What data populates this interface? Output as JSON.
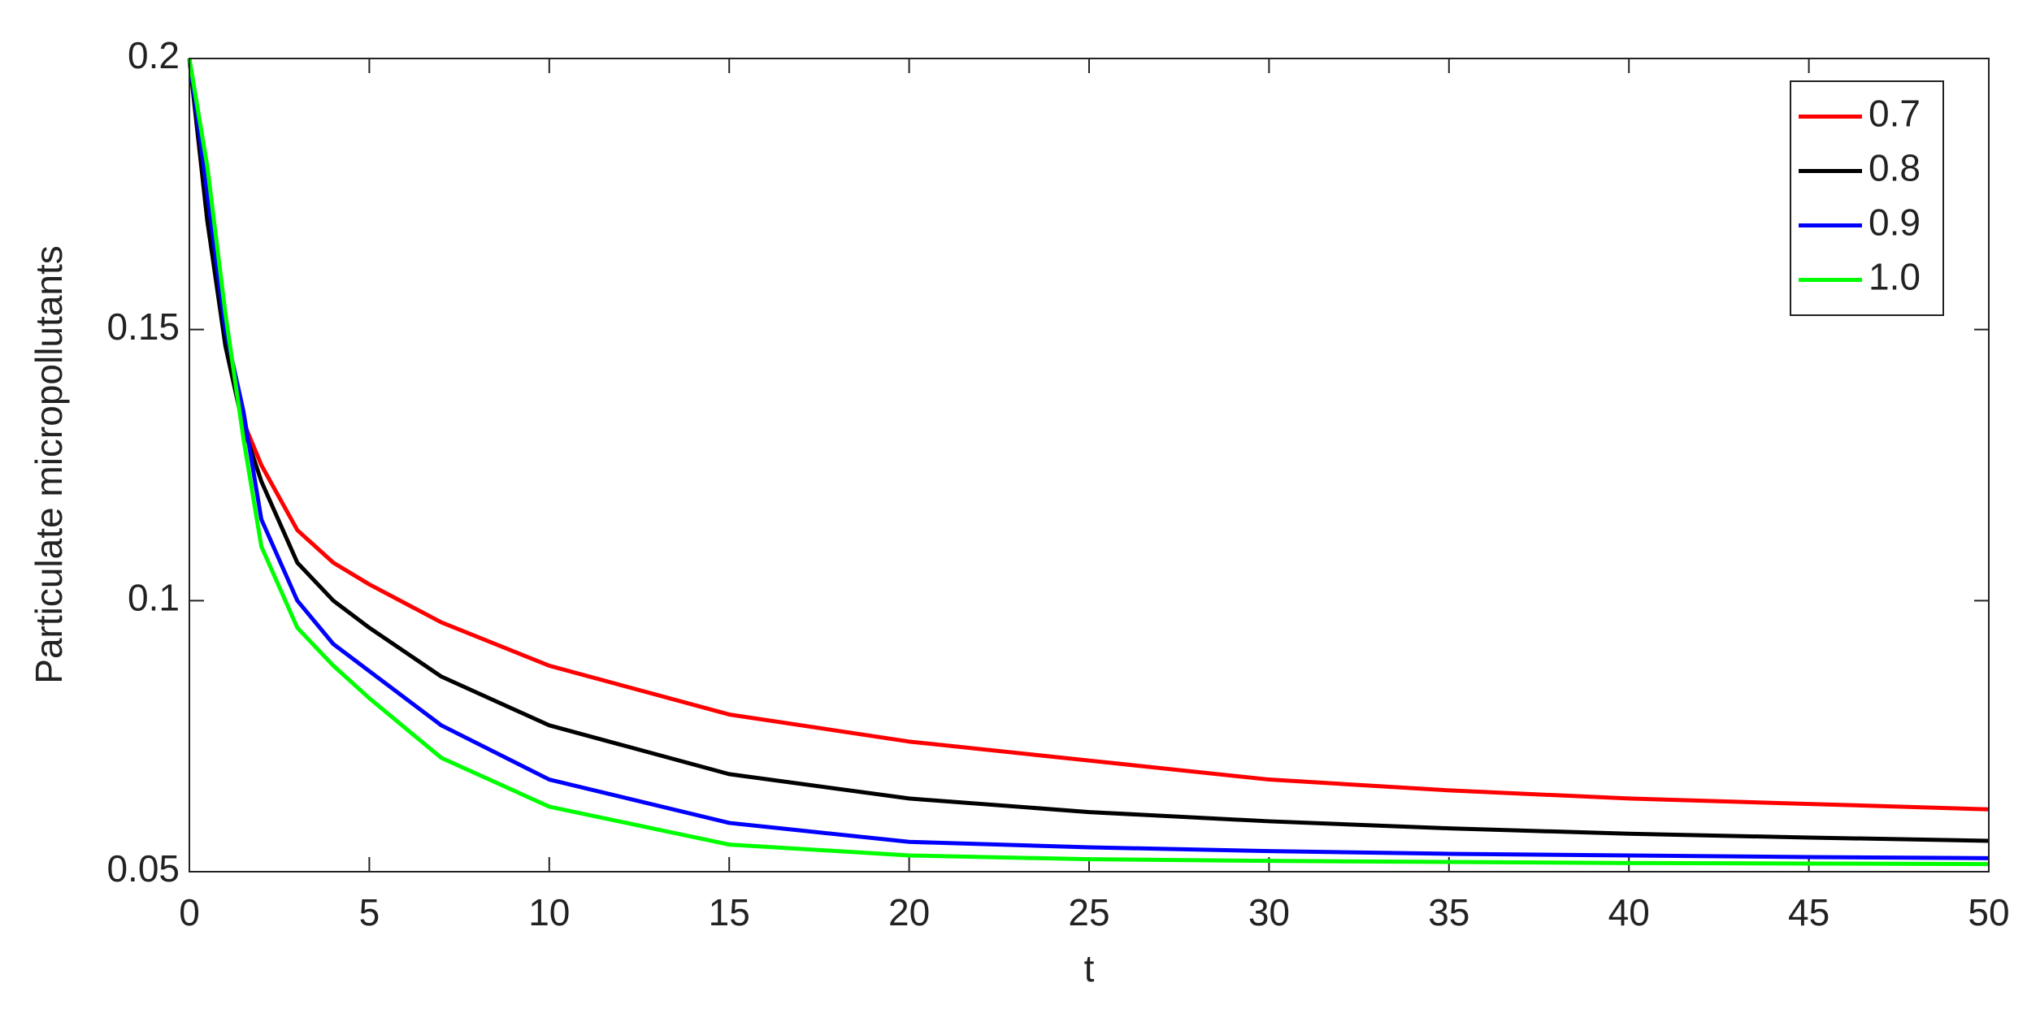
{
  "chart_data": {
    "type": "line",
    "xlabel": "t",
    "ylabel": "Particulate micropollutants",
    "x": [
      0,
      0.5,
      1,
      1.5,
      2,
      3,
      4,
      5,
      7,
      10,
      15,
      20,
      25,
      30,
      35,
      40,
      45,
      50
    ],
    "series": [
      {
        "name": "0.7",
        "color": "#ff0000",
        "values": [
          0.2,
          0.17,
          0.148,
          0.133,
          0.125,
          0.113,
          0.107,
          0.103,
          0.096,
          0.088,
          0.079,
          0.074,
          0.0705,
          0.067,
          0.065,
          0.0635,
          0.0625,
          0.0615
        ]
      },
      {
        "name": "0.8",
        "color": "#000000",
        "values": [
          0.2,
          0.17,
          0.147,
          0.132,
          0.122,
          0.107,
          0.1,
          0.095,
          0.086,
          0.077,
          0.068,
          0.0635,
          0.061,
          0.0593,
          0.058,
          0.057,
          0.0563,
          0.0557
        ]
      },
      {
        "name": "0.9",
        "color": "#0000ff",
        "values": [
          0.2,
          0.175,
          0.15,
          0.135,
          0.115,
          0.1,
          0.092,
          0.087,
          0.077,
          0.067,
          0.059,
          0.0555,
          0.0545,
          0.0538,
          0.0533,
          0.053,
          0.0527,
          0.0525
        ]
      },
      {
        "name": "1.0",
        "color": "#00ff00",
        "values": [
          0.2,
          0.18,
          0.153,
          0.13,
          0.11,
          0.095,
          0.088,
          0.082,
          0.071,
          0.062,
          0.055,
          0.053,
          0.0523,
          0.052,
          0.0518,
          0.0516,
          0.0515,
          0.0514
        ]
      }
    ],
    "xlim": [
      0,
      50
    ],
    "xticks": [
      0,
      5,
      10,
      15,
      20,
      25,
      30,
      35,
      40,
      45,
      50
    ],
    "ylim": [
      0.05,
      0.2
    ],
    "yticks": [
      0.05,
      0.1,
      0.15,
      0.2
    ],
    "grid": false,
    "legend": "top-right"
  }
}
